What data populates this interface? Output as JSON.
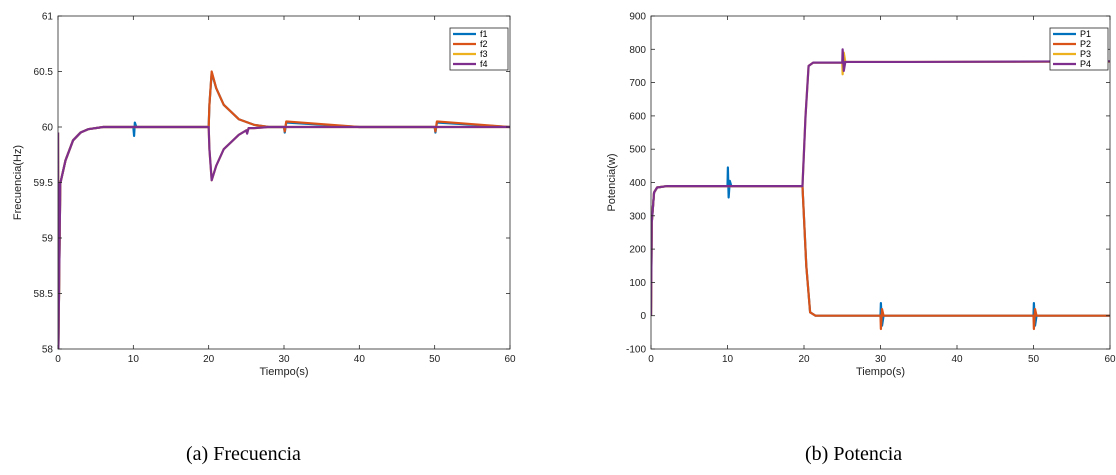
{
  "colors": {
    "s1": "#0072bd",
    "s2": "#d95319",
    "s3": "#edb120",
    "s4": "#7e2f8e"
  },
  "captions": {
    "a": "(a)  Frecuencia",
    "b": "(b)  Potencia"
  },
  "chart_data": [
    {
      "type": "line",
      "xlabel": "Tiempo(s)",
      "ylabel": "Frecuencia(Hz)",
      "xlim": [
        0,
        60
      ],
      "ylim": [
        58,
        61
      ],
      "xticks": [
        0,
        10,
        20,
        30,
        40,
        50,
        60
      ],
      "yticks": [
        58,
        58.5,
        59,
        59.5,
        60,
        60.5,
        61
      ],
      "ytick_labels": [
        "58",
        "58.5",
        "59",
        "59.5",
        "60",
        "60.5",
        "61"
      ],
      "grid": false,
      "legend": "top-right",
      "series": [
        {
          "name": "f1",
          "color": "#0072bd",
          "x": [
            0,
            0.05,
            0.3,
            1,
            2,
            3,
            4,
            6,
            8,
            10,
            10.1,
            10.2,
            10.4,
            20,
            20.1,
            20.4,
            21,
            22,
            24,
            26,
            28,
            30,
            30.1,
            30.3,
            40,
            50,
            50.1,
            50.3,
            60
          ],
          "y": [
            59.95,
            58,
            59.49,
            59.7,
            59.88,
            59.95,
            59.98,
            60,
            60,
            60,
            59.92,
            60.04,
            60,
            60,
            60.2,
            60.49,
            60.35,
            60.2,
            60.07,
            60.02,
            60,
            60,
            59.95,
            60.04,
            60,
            60,
            59.95,
            60.04,
            60
          ]
        },
        {
          "name": "f2",
          "color": "#d95319",
          "x": [
            0,
            0.05,
            0.3,
            1,
            2,
            3,
            4,
            6,
            8,
            20,
            20.1,
            20.4,
            21,
            22,
            24,
            26,
            28,
            30,
            30.1,
            30.3,
            40,
            50,
            50.1,
            50.3,
            60
          ],
          "y": [
            59.95,
            58,
            59.49,
            59.7,
            59.88,
            59.95,
            59.98,
            60,
            60,
            60,
            60.2,
            60.5,
            60.35,
            60.2,
            60.07,
            60.02,
            60,
            60,
            59.96,
            60.05,
            60,
            60,
            59.96,
            60.05,
            60
          ]
        },
        {
          "name": "f3",
          "color": "#edb120",
          "x": [
            0,
            0.05,
            0.3,
            1,
            2,
            3,
            4,
            6,
            8,
            20,
            20.1,
            20.4,
            21,
            22,
            24,
            25,
            25.1,
            25.3,
            26,
            28,
            30,
            40,
            60
          ],
          "y": [
            59.95,
            58,
            59.49,
            59.7,
            59.88,
            59.95,
            59.98,
            60,
            60,
            60,
            59.8,
            59.52,
            59.65,
            59.8,
            59.93,
            59.97,
            59.95,
            59.99,
            59.99,
            60,
            60,
            60,
            60
          ]
        },
        {
          "name": "f4",
          "color": "#7e2f8e",
          "x": [
            0,
            0.05,
            0.3,
            1,
            2,
            3,
            4,
            6,
            8,
            20,
            20.1,
            20.4,
            21,
            22,
            24,
            25,
            25.1,
            25.3,
            26,
            28,
            30,
            40,
            60
          ],
          "y": [
            59.95,
            58,
            59.49,
            59.7,
            59.88,
            59.95,
            59.98,
            60,
            60,
            60,
            59.8,
            59.52,
            59.65,
            59.8,
            59.93,
            59.97,
            59.94,
            59.99,
            59.99,
            60,
            60,
            60,
            60
          ]
        }
      ]
    },
    {
      "type": "line",
      "xlabel": "Tiempo(s)",
      "ylabel": "Potencia(w)",
      "xlim": [
        0,
        60
      ],
      "ylim": [
        -100,
        900
      ],
      "xticks": [
        0,
        10,
        20,
        30,
        40,
        50,
        60
      ],
      "yticks": [
        -100,
        0,
        100,
        200,
        300,
        400,
        500,
        600,
        700,
        800,
        900
      ],
      "ytick_labels": [
        "-100",
        "0",
        "100",
        "200",
        "300",
        "400",
        "500",
        "600",
        "700",
        "800",
        "900"
      ],
      "grid": false,
      "legend": "top-right",
      "series": [
        {
          "name": "P1",
          "color": "#0072bd",
          "x": [
            0,
            0.1,
            0.4,
            0.8,
            2,
            10,
            10.05,
            10.15,
            10.3,
            10.5,
            19.8,
            20.3,
            20.8,
            21.5,
            30,
            30.05,
            30.2,
            30.4,
            50,
            50.05,
            50.2,
            50.4,
            60
          ],
          "y": [
            0,
            280,
            370,
            385,
            389,
            389,
            445,
            355,
            405,
            389,
            389,
            150,
            10,
            0,
            0,
            38,
            -30,
            0,
            0,
            38,
            -30,
            0,
            0
          ]
        },
        {
          "name": "P2",
          "color": "#d95319",
          "x": [
            0,
            0.1,
            0.4,
            0.8,
            2,
            19.8,
            20.3,
            20.8,
            21.5,
            30,
            30.05,
            30.2,
            30.4,
            50,
            50.05,
            50.2,
            50.4,
            60
          ],
          "y": [
            0,
            280,
            370,
            385,
            389,
            389,
            150,
            10,
            0,
            0,
            -40,
            20,
            0,
            0,
            -40,
            20,
            0,
            0
          ]
        },
        {
          "name": "P3",
          "color": "#edb120",
          "x": [
            0,
            0.1,
            0.4,
            0.8,
            2,
            19.8,
            20.2,
            20.6,
            21.2,
            25,
            25.05,
            25.2,
            25.4,
            34,
            60
          ],
          "y": [
            0,
            280,
            370,
            385,
            389,
            389,
            600,
            750,
            760,
            760,
            725,
            790,
            762,
            762,
            763
          ]
        },
        {
          "name": "P4",
          "color": "#7e2f8e",
          "x": [
            0,
            0.1,
            0.4,
            0.8,
            2,
            19.8,
            20.2,
            20.6,
            21.2,
            25,
            25.05,
            25.2,
            25.4,
            34,
            60
          ],
          "y": [
            0,
            280,
            370,
            385,
            389,
            389,
            600,
            750,
            760,
            760,
            800,
            735,
            762,
            762,
            764
          ]
        }
      ]
    }
  ]
}
